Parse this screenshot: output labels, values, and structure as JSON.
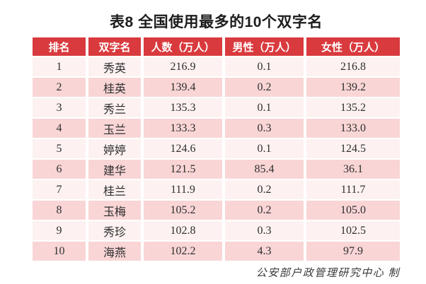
{
  "title": "表8  全国使用最多的10个双字名",
  "footer": "公安部户政管理研究中心 制",
  "colors": {
    "header_bg": "#d93a3e",
    "header_text": "#ffffff",
    "row_odd": "#fdf2f1",
    "row_even": "#f9d5d6",
    "title_text": "#1c1c1c",
    "cell_text": "#2e2e2e",
    "note_text": "#3a3a3a",
    "separator": "#ffffff"
  },
  "chart_data": {
    "type": "table",
    "title": "表8  全国使用最多的10个双字名",
    "columns": [
      "排名",
      "双字名",
      "人数（万人）",
      "男性（万人）",
      "女性（万人）"
    ],
    "rows": [
      [
        "1",
        "秀英",
        "216.9",
        "0.1",
        "216.8"
      ],
      [
        "2",
        "桂英",
        "139.4",
        "0.2",
        "139.2"
      ],
      [
        "3",
        "秀兰",
        "135.3",
        "0.1",
        "135.2"
      ],
      [
        "4",
        "玉兰",
        "133.3",
        "0.3",
        "133.0"
      ],
      [
        "5",
        "婷婷",
        "124.6",
        "0.1",
        "124.5"
      ],
      [
        "6",
        "建华",
        "121.5",
        "85.4",
        "36.1"
      ],
      [
        "7",
        "桂兰",
        "111.9",
        "0.2",
        "111.7"
      ],
      [
        "8",
        "玉梅",
        "105.2",
        "0.2",
        "105.0"
      ],
      [
        "9",
        "秀珍",
        "102.8",
        "0.3",
        "102.5"
      ],
      [
        "10",
        "海燕",
        "102.2",
        "4.3",
        "97.9"
      ]
    ],
    "source_note": "公安部户政管理研究中心 制"
  }
}
